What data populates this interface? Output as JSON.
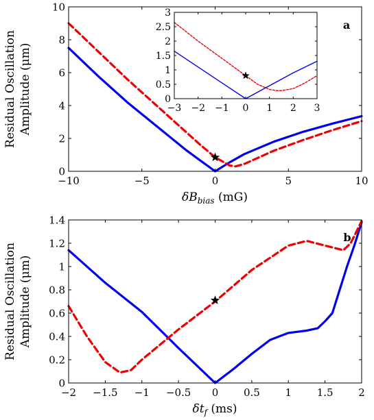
{
  "chart_data": [
    {
      "type": "line",
      "panel_label": "a",
      "xlabel": "δB",
      "xlabel_sub": "bias",
      "xlabel_unit": " (mG)",
      "ylabel_line1": "Residual Oscillation",
      "ylabel_line2": "Amplitude (μm)",
      "xlim": [
        -10,
        10
      ],
      "ylim": [
        0,
        10
      ],
      "xticks": [
        -10,
        -5,
        0,
        5,
        10
      ],
      "yticks": [
        0,
        2,
        4,
        6,
        8,
        10
      ],
      "grid": false,
      "series": [
        {
          "style": "solid",
          "color": "#0000ee",
          "x": [
            -10,
            -8,
            -6,
            -4,
            -2,
            -1,
            0,
            1,
            2,
            4,
            6,
            8,
            10
          ],
          "y": [
            7.5,
            5.8,
            4.2,
            2.75,
            1.3,
            0.65,
            0.0,
            0.55,
            1.05,
            1.8,
            2.4,
            2.9,
            3.35
          ]
        },
        {
          "style": "dashed",
          "color": "#ee0000",
          "x": [
            -10,
            -8,
            -6,
            -4,
            -2,
            -1,
            0,
            1,
            1.4,
            2,
            4,
            6,
            8,
            10
          ],
          "y": [
            9.0,
            7.3,
            5.6,
            4.0,
            2.4,
            1.6,
            0.85,
            0.35,
            0.3,
            0.45,
            1.25,
            1.9,
            2.5,
            3.05
          ]
        }
      ],
      "marker": {
        "symbol": "star",
        "x": 0,
        "y": 0.85,
        "color": "#000000"
      },
      "inset": {
        "xlim": [
          -3,
          3
        ],
        "ylim": [
          0,
          3
        ],
        "xticks": [
          -3,
          -2,
          -1,
          0,
          1,
          2,
          3
        ],
        "yticks": [
          0,
          0.5,
          1,
          1.5,
          2,
          2.5,
          3
        ],
        "series": [
          {
            "style": "solid",
            "color": "#0000ee",
            "x": [
              -3,
              -2,
              -1,
              0,
              1,
              2,
              3
            ],
            "y": [
              1.65,
              1.1,
              0.55,
              0.0,
              0.45,
              0.9,
              1.3
            ]
          },
          {
            "style": "dashed",
            "color": "#ee0000",
            "x": [
              -3,
              -2,
              -1,
              0,
              0.5,
              1,
              1.3,
              1.5,
              2,
              2.5,
              3
            ],
            "y": [
              2.65,
              2.0,
              1.4,
              0.8,
              0.5,
              0.32,
              0.28,
              0.28,
              0.35,
              0.55,
              0.8
            ]
          }
        ],
        "marker": {
          "symbol": "star",
          "x": 0,
          "y": 0.8,
          "color": "#000000"
        }
      }
    },
    {
      "type": "line",
      "panel_label": "b",
      "xlabel": "δt",
      "xlabel_sub": "f",
      "xlabel_unit": " (ms)",
      "ylabel_line1": "Residual Oscillation",
      "ylabel_line2": "Amplitude (μm)",
      "xlim": [
        -2,
        2
      ],
      "ylim": [
        0,
        1.4
      ],
      "xticks": [
        -2,
        -1.5,
        -1,
        -0.5,
        0,
        0.5,
        1,
        1.5,
        2
      ],
      "yticks": [
        0,
        0.2,
        0.4,
        0.6,
        0.8,
        1,
        1.2,
        1.4
      ],
      "grid": false,
      "series": [
        {
          "style": "solid",
          "color": "#0000ee",
          "x": [
            -2,
            -1.5,
            -1,
            -0.5,
            0,
            0.25,
            0.5,
            0.75,
            1.0,
            1.25,
            1.4,
            1.5,
            1.6,
            1.7,
            1.8,
            1.9,
            2.0
          ],
          "y": [
            1.14,
            0.86,
            0.61,
            0.3,
            0.0,
            0.12,
            0.25,
            0.37,
            0.43,
            0.45,
            0.47,
            0.53,
            0.6,
            0.8,
            1.0,
            1.18,
            1.38
          ]
        },
        {
          "style": "dashed",
          "color": "#ee0000",
          "x": [
            -2,
            -1.75,
            -1.5,
            -1.3,
            -1.15,
            -1,
            -0.5,
            0,
            0.5,
            1.0,
            1.25,
            1.5,
            1.75,
            1.85,
            2.0
          ],
          "y": [
            0.66,
            0.4,
            0.18,
            0.09,
            0.11,
            0.2,
            0.46,
            0.7,
            0.97,
            1.18,
            1.22,
            1.18,
            1.14,
            1.2,
            1.39
          ]
        }
      ],
      "marker": {
        "symbol": "star",
        "x": 0,
        "y": 0.71,
        "color": "#000000"
      }
    }
  ]
}
